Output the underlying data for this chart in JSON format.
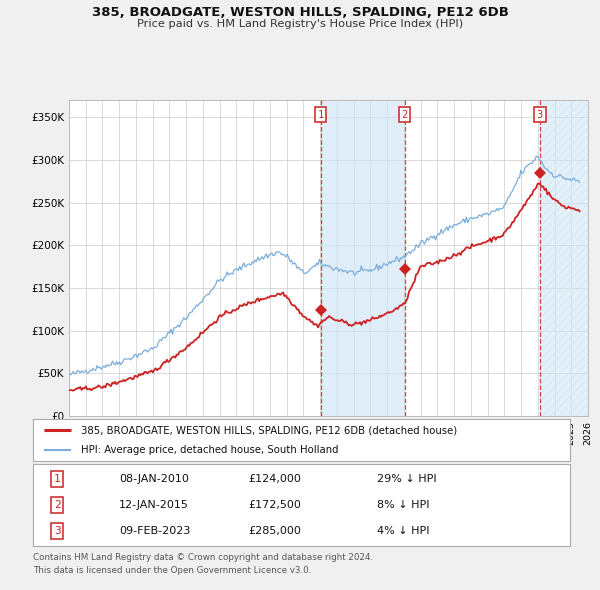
{
  "title1": "385, BROADGATE, WESTON HILLS, SPALDING, PE12 6DB",
  "title2": "Price paid vs. HM Land Registry's House Price Index (HPI)",
  "xlim": [
    1995.0,
    2026.0
  ],
  "ylim": [
    0,
    370000
  ],
  "yticks": [
    0,
    50000,
    100000,
    150000,
    200000,
    250000,
    300000,
    350000
  ],
  "ytick_labels": [
    "£0",
    "£50K",
    "£100K",
    "£150K",
    "£200K",
    "£250K",
    "£300K",
    "£350K"
  ],
  "hpi_color": "#7aaddb",
  "price_color": "#cc2222",
  "grid_color": "#cccccc",
  "sale_dates": [
    2010.03,
    2015.04,
    2023.12
  ],
  "sale_prices": [
    124000,
    172500,
    285000
  ],
  "sale_labels": [
    "1",
    "2",
    "3"
  ],
  "legend_price_label": "385, BROADGATE, WESTON HILLS, SPALDING, PE12 6DB (detached house)",
  "legend_hpi_label": "HPI: Average price, detached house, South Holland",
  "table_rows": [
    [
      "1",
      "08-JAN-2010",
      "£124,000",
      "29% ↓ HPI"
    ],
    [
      "2",
      "12-JAN-2015",
      "£172,500",
      "8% ↓ HPI"
    ],
    [
      "3",
      "09-FEB-2023",
      "£285,000",
      "4% ↓ HPI"
    ]
  ],
  "footnote1": "Contains HM Land Registry data © Crown copyright and database right 2024.",
  "footnote2": "This data is licensed under the Open Government Licence v3.0."
}
